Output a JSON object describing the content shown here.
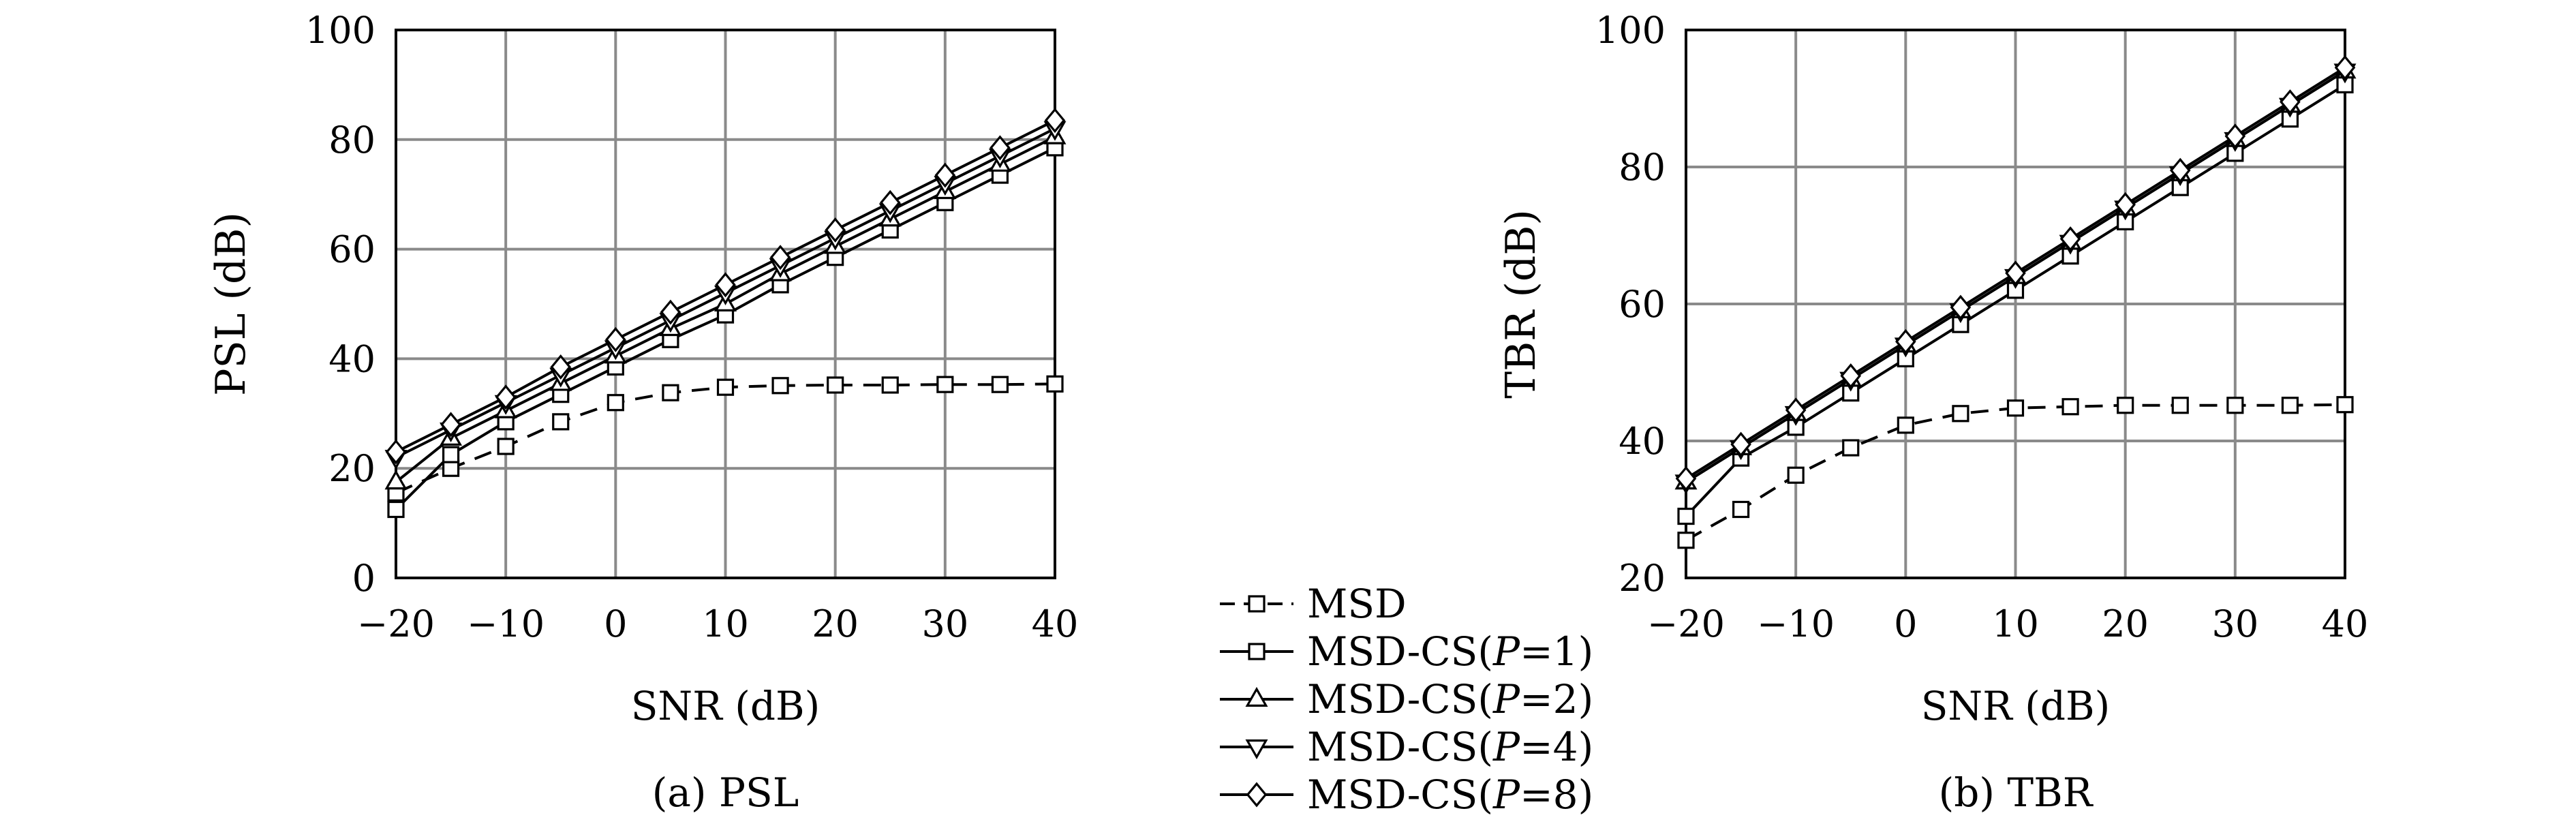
{
  "chart_data": [
    {
      "type": "line",
      "caption": "(a) PSL",
      "xlabel": "SNR (dB)",
      "ylabel": "PSL (dB)",
      "xlim": [
        -20,
        40
      ],
      "ylim": [
        0,
        100
      ],
      "xticks": [
        -20,
        -10,
        0,
        10,
        20,
        30,
        40
      ],
      "yticks": [
        0,
        20,
        40,
        60,
        80,
        100
      ],
      "xtick_labels": [
        "−20",
        "−10",
        "0",
        "10",
        "20",
        "30",
        "40"
      ],
      "ytick_labels": [
        "0",
        "20",
        "40",
        "60",
        "80",
        "100"
      ],
      "grid": true,
      "x": [
        -20,
        -15,
        -10,
        -5,
        0,
        5,
        10,
        15,
        20,
        25,
        30,
        35,
        40
      ],
      "series": [
        {
          "name": "MSD",
          "values": [
            15.5,
            20,
            24,
            28.5,
            32,
            33.8,
            34.8,
            35.1,
            35.2,
            35.2,
            35.3,
            35.3,
            35.4
          ]
        },
        {
          "name": "MSD-CS(P=1)",
          "values": [
            12.5,
            22.5,
            28.5,
            33.5,
            38.5,
            43.5,
            48,
            53.5,
            58.5,
            63.5,
            68.5,
            73.5,
            78.5
          ]
        },
        {
          "name": "MSD-CS(P=2)",
          "values": [
            17.5,
            25.5,
            30.5,
            35.5,
            40.5,
            45.5,
            50,
            55.5,
            60.5,
            65.5,
            70.5,
            75.5,
            80.5
          ]
        },
        {
          "name": "MSD-CS(P=4)",
          "values": [
            22,
            27,
            32,
            37,
            42,
            47,
            52,
            57,
            62,
            67,
            72,
            77,
            82
          ]
        },
        {
          "name": "MSD-CS(P=8)",
          "values": [
            23,
            28,
            33,
            38.5,
            43.5,
            48.5,
            53.5,
            58.5,
            63.5,
            68.5,
            73.5,
            78.5,
            83.5
          ]
        }
      ]
    },
    {
      "type": "line",
      "caption": "(b) TBR",
      "xlabel": "SNR (dB)",
      "ylabel": "TBR (dB)",
      "xlim": [
        -20,
        40
      ],
      "ylim": [
        20,
        100
      ],
      "xticks": [
        -20,
        -10,
        0,
        10,
        20,
        30,
        40
      ],
      "yticks": [
        20,
        40,
        60,
        80,
        100
      ],
      "xtick_labels": [
        "−20",
        "−10",
        "0",
        "10",
        "20",
        "30",
        "40"
      ],
      "ytick_labels": [
        "20",
        "40",
        "60",
        "80",
        "100"
      ],
      "grid": true,
      "x": [
        -20,
        -15,
        -10,
        -5,
        0,
        5,
        10,
        15,
        20,
        25,
        30,
        35,
        40
      ],
      "series": [
        {
          "name": "MSD",
          "values": [
            25.5,
            30,
            35,
            39,
            42.3,
            44,
            44.8,
            45,
            45.2,
            45.2,
            45.2,
            45.2,
            45.3
          ]
        },
        {
          "name": "MSD-CS(P=1)",
          "values": [
            29,
            37.5,
            42,
            47,
            52,
            57,
            62,
            67,
            72,
            77,
            82,
            87,
            92
          ]
        },
        {
          "name": "MSD-CS(P=2)",
          "values": [
            34,
            39,
            44,
            49,
            54,
            59,
            64,
            69,
            74,
            79,
            84,
            89,
            94
          ]
        },
        {
          "name": "MSD-CS(P=4)",
          "values": [
            34,
            39,
            44,
            49,
            54,
            59,
            64,
            69,
            74,
            79,
            84,
            89,
            94
          ]
        },
        {
          "name": "MSD-CS(P=8)",
          "values": [
            34.5,
            39.5,
            44.5,
            49.5,
            54.5,
            59.5,
            64.5,
            69.5,
            74.5,
            79.5,
            84.5,
            89.5,
            94.5
          ]
        }
      ]
    }
  ],
  "legend": {
    "placement": "bottom-center",
    "entries": [
      {
        "prefix": "MSD",
        "param": "",
        "suffix": "",
        "marker": "square",
        "dash": true
      },
      {
        "prefix": "MSD-CS(",
        "param": "P",
        "suffix": "=1)",
        "marker": "square",
        "dash": false
      },
      {
        "prefix": "MSD-CS(",
        "param": "P",
        "suffix": "=2)",
        "marker": "triangle-up",
        "dash": false
      },
      {
        "prefix": "MSD-CS(",
        "param": "P",
        "suffix": "=4)",
        "marker": "triangle-down",
        "dash": false
      },
      {
        "prefix": "MSD-CS(",
        "param": "P",
        "suffix": "=8)",
        "marker": "diamond",
        "dash": false
      }
    ]
  }
}
